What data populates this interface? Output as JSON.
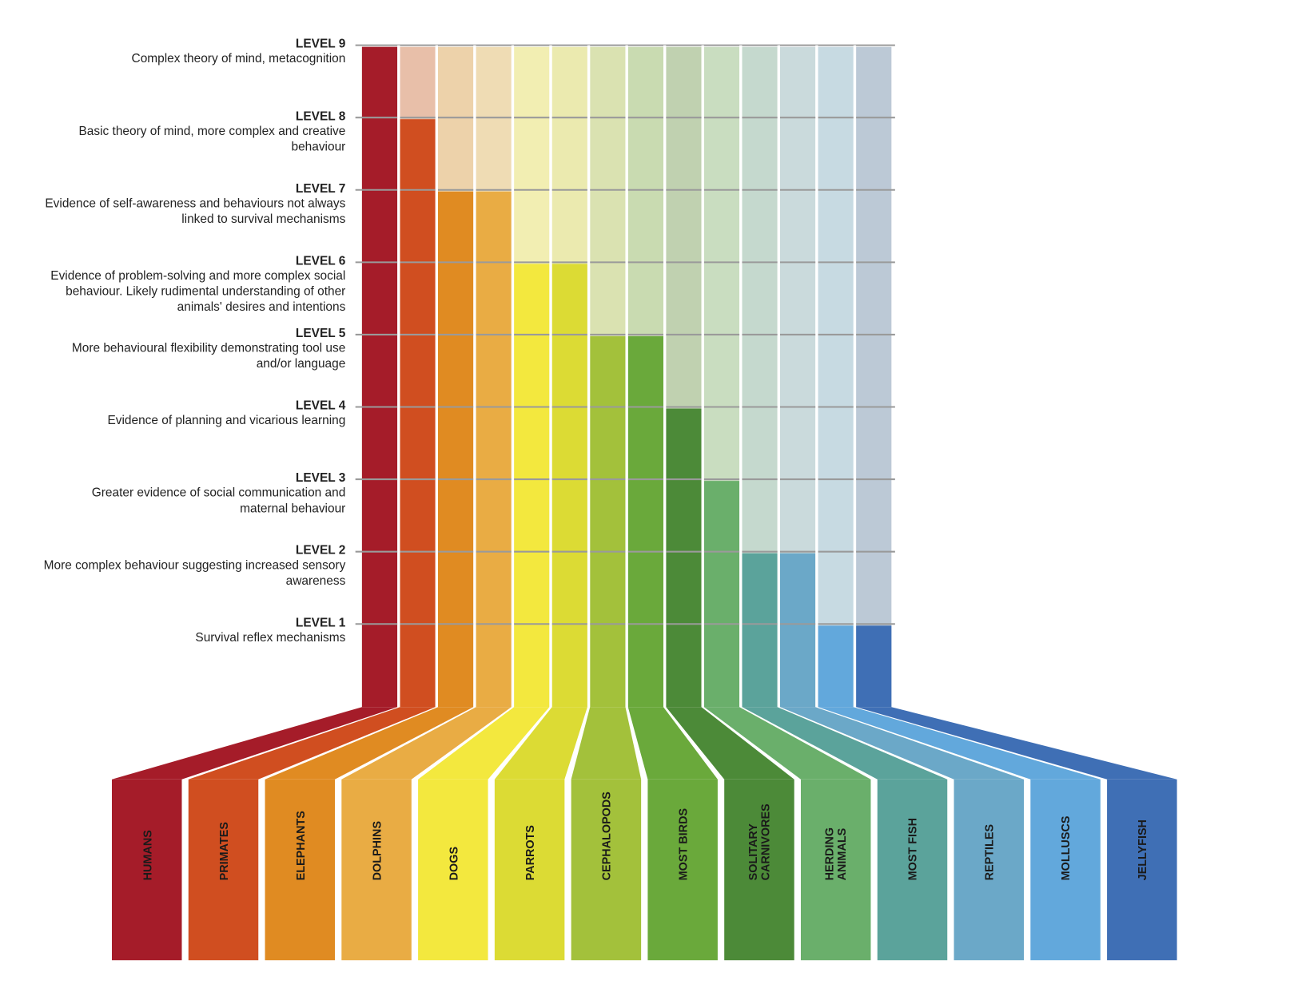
{
  "chart_data": {
    "type": "level-columns",
    "categories": [
      "HUMANS",
      "PRIMATES",
      "ELEPHANTS",
      "DOLPHINS",
      "DOGS",
      "PARROTS",
      "CEPHALOPODS",
      "MOST BIRDS",
      "SOLITARY CARNIVORES",
      "HERDING ANIMALS",
      "MOST FISH",
      "REPTILES",
      "MOLLUSCS",
      "JELLYFISH"
    ],
    "values": [
      9,
      8,
      7,
      7,
      6,
      6,
      5,
      5,
      4,
      3,
      2,
      2,
      1,
      1
    ],
    "colors": [
      "#a51c29",
      "#d04e20",
      "#e08b22",
      "#e9ac44",
      "#f3e83e",
      "#dcdb34",
      "#a3c13b",
      "#6aa93b",
      "#4c8a38",
      "#6aaf6b",
      "#5ba39b",
      "#6ba8c8",
      "#62a8dc",
      "#3f6fb5"
    ],
    "ylim": [
      0,
      9
    ],
    "yticks": [
      {
        "value": 1,
        "label": "LEVEL 1"
      },
      {
        "value": 2,
        "label": "LEVEL 2"
      },
      {
        "value": 3,
        "label": "LEVEL 3"
      },
      {
        "value": 4,
        "label": "LEVEL 4"
      },
      {
        "value": 5,
        "label": "LEVEL 5"
      },
      {
        "value": 6,
        "label": "LEVEL 6"
      },
      {
        "value": 7,
        "label": "LEVEL 7"
      },
      {
        "value": 8,
        "label": "LEVEL 8"
      },
      {
        "value": 9,
        "label": "LEVEL 9"
      }
    ],
    "level_descriptions": [
      "Survival reflex mechanisms",
      "More complex behaviour suggesting increased sensory awareness",
      "Greater evidence of social communication and maternal behaviour",
      "Evidence of planning and vicarious learning",
      "More behavioural flexibility demonstrating tool use and/or language",
      "Evidence of problem-solving and more complex social behaviour. Likely rudimental understanding of other animals' desires and intentions",
      "Evidence of self-awareness and behaviours not always linked to survival mechanisms",
      "Basic theory of mind, more complex and creative behaviour",
      "Complex theory of mind, metacognition"
    ],
    "grid": true
  }
}
